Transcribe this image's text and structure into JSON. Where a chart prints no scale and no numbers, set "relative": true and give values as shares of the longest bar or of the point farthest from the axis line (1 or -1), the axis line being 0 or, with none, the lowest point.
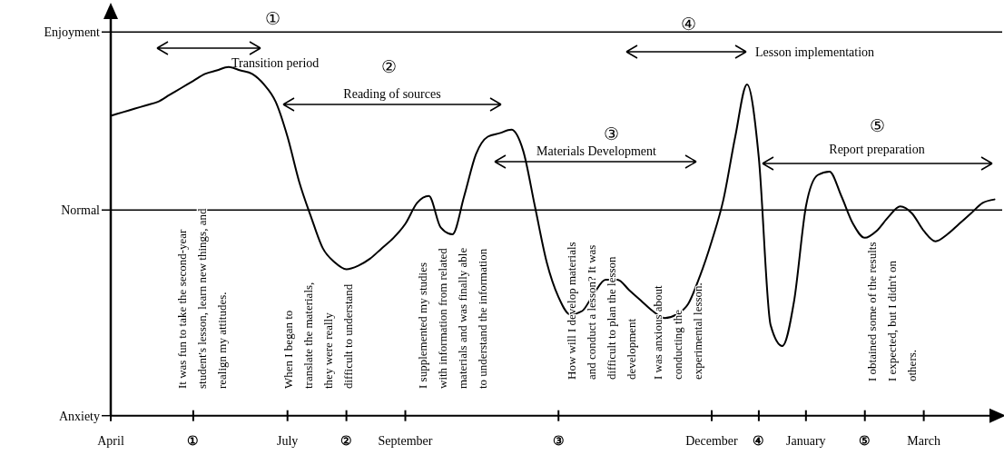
{
  "chart_data": {
    "type": "line",
    "relative": true,
    "categories": [
      "April",
      null,
      null,
      null,
      null,
      null,
      null,
      "①",
      null,
      null,
      null,
      null,
      null,
      null,
      null,
      "July",
      null,
      null,
      null,
      null,
      "②",
      null,
      null,
      null,
      null,
      "September",
      null,
      null,
      null,
      null,
      null,
      null,
      null,
      null,
      null,
      null,
      null,
      null,
      "③",
      null,
      null,
      null,
      null,
      null,
      null,
      null,
      null,
      null,
      null,
      null,
      null,
      "December",
      null,
      null,
      null,
      "④",
      null,
      null,
      null,
      "January",
      null,
      null,
      null,
      null,
      "⑤",
      null,
      null,
      null,
      null,
      "March",
      null,
      null,
      null,
      null,
      null,
      null
    ],
    "series": [
      {
        "color": "#000000",
        "values": [
          0.86,
          0.87,
          0.88,
          0.89,
          0.9,
          0.92,
          0.94,
          0.96,
          0.98,
          0.99,
          1.0,
          0.99,
          0.98,
          0.95,
          0.9,
          0.8,
          0.67,
          0.57,
          0.48,
          0.44,
          0.42,
          0.43,
          0.45,
          0.48,
          0.51,
          0.55,
          0.61,
          0.63,
          0.54,
          0.52,
          0.63,
          0.75,
          0.8,
          0.81,
          0.82,
          0.76,
          0.6,
          0.44,
          0.34,
          0.29,
          0.3,
          0.35,
          0.39,
          0.39,
          0.36,
          0.33,
          0.3,
          0.28,
          0.29,
          0.32,
          0.4,
          0.5,
          0.62,
          0.8,
          0.95,
          0.74,
          0.26,
          0.2,
          0.33,
          0.6,
          0.69,
          0.7,
          0.63,
          0.55,
          0.51,
          0.53,
          0.57,
          0.6,
          0.58,
          0.53,
          0.5,
          0.52,
          0.55,
          0.58,
          0.61,
          0.62
        ]
      }
    ],
    "ref_lines": [
      {
        "axis": "y",
        "value": 1.1,
        "label": "Enjoyment",
        "color": "#000000"
      },
      {
        "axis": "y",
        "value": 0.59,
        "label": "Normal",
        "color": "#000000"
      },
      {
        "axis": "y",
        "value": 0,
        "label": "Anxiety",
        "color": "#000000"
      }
    ],
    "annotations": [
      "①",
      "Transition period",
      "②",
      "Reading of sources",
      "③",
      "Materials Development",
      "④",
      "Lesson implementation",
      "⑤",
      "Report preparation",
      "It was fun to take the second-year\nstudent's lesson, learn new things, and\nrealign my attitudes.",
      "When I began to\ntranslate the materials,\nthey were really\ndifficult to understand",
      "I supplemented my studies\nwith information from related\nmaterials and was finally able\nto understand the information",
      "How will I develop materials\nand conduct a lesson? It was\ndifficult to plan the lesson\ndevelopment",
      "I was anxious about\nconducting the\nexperimental lesson.",
      "I obtained some of the results\nI expected, but I didn't on\nothers."
    ]
  }
}
